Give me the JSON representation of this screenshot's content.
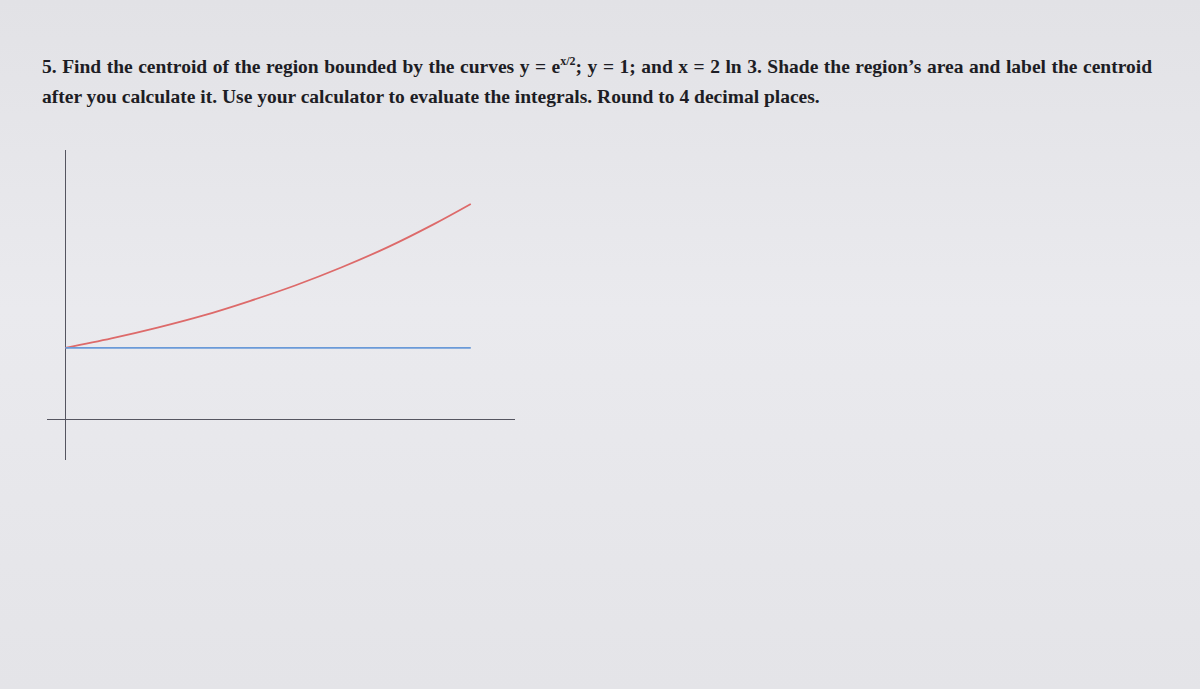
{
  "problem": {
    "text_before": "5. Find the centroid of the region bounded by the curves  y = e",
    "superscript": "x/2",
    "text_after": "; y = 1; and x = 2 ln 3.  Shade the region’s area and label the centroid after you calculate it.  Use your calculator to evaluate the integrals.  Round to 4 decimal places."
  },
  "chart_data": {
    "type": "line",
    "tick_labels": false,
    "grid": false,
    "xlim": [
      -0.1,
      2.44
    ],
    "ylim": [
      -0.56,
      3.75
    ],
    "series": [
      {
        "color": "#dd6a6a",
        "x": [
          0,
          0.25,
          0.5,
          0.75,
          1.0,
          1.25,
          1.5,
          1.75,
          2.0,
          2.2
        ],
        "values": [
          1,
          1.13,
          1.28,
          1.45,
          1.65,
          1.87,
          2.12,
          2.4,
          2.72,
          3.0
        ]
      },
      {
        "color": "#6a9ad8",
        "x": [
          0,
          2.2
        ],
        "values": [
          1,
          1
        ]
      }
    ]
  }
}
